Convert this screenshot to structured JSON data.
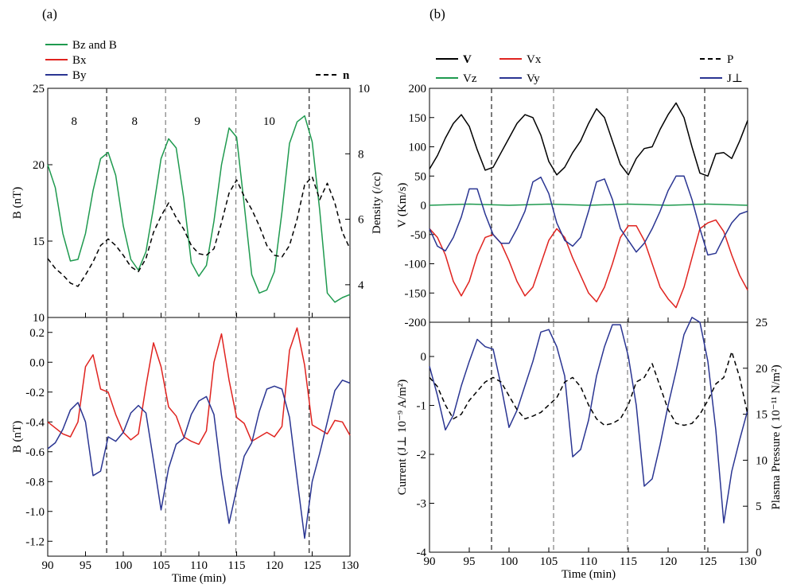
{
  "figure": {
    "label_a": "(a)",
    "label_b": "(b)"
  },
  "colors": {
    "green": "#1f9a4f",
    "red": "#e0231f",
    "blue": "#2a3592",
    "black": "#000000",
    "grid": "#888888"
  },
  "chart_data": [
    {
      "id": "a_top",
      "type": "line",
      "legend": [
        "Bz and B",
        "Bx",
        "By",
        "n"
      ],
      "ylabel": "B (nT)",
      "ylabel_right": "Density (/cc)",
      "xlim": [
        90,
        130
      ],
      "ylim": [
        10,
        25
      ],
      "yticks": [
        10,
        15,
        20,
        25
      ],
      "ylim_right": [
        3,
        10
      ],
      "yticks_right": [
        4,
        6,
        8,
        10
      ],
      "vlines": [
        97.8,
        105.6,
        114.9,
        124.6
      ],
      "annotations": [
        {
          "text": "8",
          "x": 93.5,
          "y": 22.6
        },
        {
          "text": "8",
          "x": 101.5,
          "y": 22.6
        },
        {
          "text": "9",
          "x": 109.8,
          "y": 22.6
        },
        {
          "text": "10",
          "x": 119.3,
          "y": 22.6
        }
      ],
      "series": [
        {
          "name": "Bz and B",
          "color": "green",
          "dash": false,
          "x": [
            90,
            91,
            92,
            93,
            94,
            95,
            96,
            97,
            98,
            99,
            100,
            101,
            102,
            103,
            104,
            105,
            106,
            107,
            108,
            109,
            110,
            111,
            112,
            113,
            114,
            115,
            116,
            117,
            118,
            119,
            120,
            121,
            122,
            123,
            124,
            125,
            126,
            127,
            128,
            129,
            130
          ],
          "y": [
            20,
            18.5,
            15.5,
            13.7,
            13.8,
            15.5,
            18.3,
            20.4,
            20.8,
            19.3,
            16,
            13.8,
            13.1,
            14.3,
            17.2,
            20.4,
            21.7,
            21.1,
            17.8,
            13.6,
            12.7,
            13.4,
            16.3,
            20,
            22.4,
            21.8,
            17.4,
            12.8,
            11.6,
            11.8,
            13,
            16.9,
            21.4,
            22.8,
            23.2,
            21.5,
            17,
            11.6,
            11,
            11.3,
            11.5
          ]
        },
        {
          "name": "n",
          "color": "black",
          "dash": true,
          "axis": "right",
          "x": [
            90,
            91,
            92,
            93,
            94,
            95,
            96,
            97,
            98,
            99,
            100,
            101,
            102,
            103,
            104,
            105,
            106,
            107,
            108,
            109,
            110,
            111,
            112,
            113,
            114,
            115,
            116,
            117,
            118,
            119,
            120,
            121,
            122,
            123,
            124,
            125,
            126,
            127,
            128,
            129,
            130
          ],
          "y": [
            4.8,
            4.5,
            4.3,
            4.05,
            3.95,
            4.3,
            4.7,
            5.2,
            5.4,
            5.2,
            4.9,
            4.55,
            4.4,
            4.8,
            5.6,
            6.1,
            6.5,
            6.05,
            5.7,
            5.2,
            4.95,
            4.9,
            5.1,
            5.9,
            6.8,
            7.2,
            6.7,
            6.3,
            5.8,
            5.2,
            4.9,
            4.85,
            5.2,
            6.0,
            7.05,
            7.3,
            6.6,
            7.1,
            6.5,
            5.6,
            5.1
          ]
        }
      ]
    },
    {
      "id": "a_bottom",
      "type": "line",
      "ylabel": "B (nT)",
      "xlabel": "Time (min)",
      "xlim": [
        90,
        130
      ],
      "xticks": [
        90,
        95,
        100,
        105,
        110,
        115,
        120,
        125,
        130
      ],
      "ylim": [
        -1.3,
        0.3
      ],
      "yticks": [
        "0.2",
        "0.0",
        "-0.2",
        "-0.4",
        "-0.6",
        "-0.8",
        "-1.0",
        "-1.2"
      ],
      "vlines": [
        97.8,
        105.6,
        114.9,
        124.6
      ],
      "series": [
        {
          "name": "Bx",
          "color": "red",
          "x": [
            90,
            91,
            92,
            93,
            94,
            95,
            96,
            97,
            98,
            99,
            100,
            101,
            102,
            103,
            104,
            105,
            106,
            107,
            108,
            109,
            110,
            111,
            112,
            113,
            114,
            115,
            116,
            117,
            118,
            119,
            120,
            121,
            122,
            123,
            124,
            125,
            126,
            127,
            128,
            129,
            130
          ],
          "y": [
            -0.4,
            -0.44,
            -0.48,
            -0.5,
            -0.4,
            -0.03,
            0.05,
            -0.18,
            -0.2,
            -0.35,
            -0.47,
            -0.52,
            -0.48,
            -0.16,
            0.13,
            -0.03,
            -0.3,
            -0.36,
            -0.5,
            -0.53,
            -0.55,
            -0.46,
            0.0,
            0.19,
            -0.12,
            -0.37,
            -0.41,
            -0.53,
            -0.5,
            -0.47,
            -0.5,
            -0.43,
            0.08,
            0.23,
            -0.02,
            -0.42,
            -0.45,
            -0.48,
            -0.39,
            -0.4,
            -0.49
          ]
        },
        {
          "name": "By",
          "color": "blue",
          "x": [
            90,
            91,
            92,
            93,
            94,
            95,
            96,
            97,
            98,
            99,
            100,
            101,
            102,
            103,
            104,
            105,
            106,
            107,
            108,
            109,
            110,
            111,
            112,
            113,
            114,
            115,
            116,
            117,
            118,
            119,
            120,
            121,
            122,
            123,
            124,
            125,
            126,
            127,
            128,
            129,
            130
          ],
          "y": [
            -0.58,
            -0.54,
            -0.45,
            -0.32,
            -0.27,
            -0.4,
            -0.76,
            -0.73,
            -0.5,
            -0.53,
            -0.47,
            -0.34,
            -0.29,
            -0.34,
            -0.66,
            -0.99,
            -0.71,
            -0.55,
            -0.51,
            -0.35,
            -0.26,
            -0.23,
            -0.35,
            -0.76,
            -1.08,
            -0.85,
            -0.63,
            -0.54,
            -0.33,
            -0.18,
            -0.16,
            -0.18,
            -0.37,
            -0.78,
            -1.18,
            -0.8,
            -0.61,
            -0.4,
            -0.19,
            -0.12,
            -0.14
          ]
        }
      ]
    },
    {
      "id": "b_top",
      "type": "line",
      "legend": [
        "V",
        "Vx",
        "P",
        "Vz",
        "Vy",
        "J⊥"
      ],
      "ylabel": "V (Km/s)",
      "xlim": [
        90,
        130
      ],
      "ylim": [
        -200,
        200
      ],
      "yticks": [
        "200",
        "150",
        "100",
        "50",
        "0",
        "-50",
        "-100",
        "-150",
        "-200"
      ],
      "vlines": [
        97.8,
        105.6,
        114.9,
        124.6
      ],
      "series": [
        {
          "name": "V",
          "color": "black",
          "x": [
            90,
            91,
            92,
            93,
            94,
            95,
            96,
            97,
            98,
            99,
            100,
            101,
            102,
            103,
            104,
            105,
            106,
            107,
            108,
            109,
            110,
            111,
            112,
            113,
            114,
            115,
            116,
            117,
            118,
            119,
            120,
            121,
            122,
            123,
            124,
            125,
            126,
            127,
            128,
            129,
            130
          ],
          "y": [
            62,
            85,
            115,
            140,
            155,
            135,
            95,
            60,
            65,
            90,
            115,
            140,
            155,
            150,
            120,
            75,
            52,
            65,
            90,
            110,
            140,
            165,
            150,
            110,
            70,
            52,
            80,
            97,
            100,
            130,
            155,
            175,
            150,
            100,
            55,
            50,
            88,
            90,
            80,
            110,
            145
          ]
        },
        {
          "name": "Vx",
          "color": "red",
          "x": [
            90,
            91,
            92,
            93,
            94,
            95,
            96,
            97,
            98,
            99,
            100,
            101,
            102,
            103,
            104,
            105,
            106,
            107,
            108,
            109,
            110,
            111,
            112,
            113,
            114,
            115,
            116,
            117,
            118,
            119,
            120,
            121,
            122,
            123,
            124,
            125,
            126,
            127,
            128,
            129,
            130
          ],
          "y": [
            -40,
            -55,
            -85,
            -130,
            -155,
            -130,
            -85,
            -55,
            -50,
            -65,
            -95,
            -130,
            -155,
            -140,
            -100,
            -60,
            -40,
            -55,
            -90,
            -120,
            -150,
            -165,
            -140,
            -100,
            -55,
            -35,
            -35,
            -60,
            -100,
            -140,
            -160,
            -175,
            -140,
            -90,
            -40,
            -30,
            -25,
            -45,
            -85,
            -120,
            -145
          ]
        },
        {
          "name": "Vz",
          "color": "green",
          "x": [
            90,
            95,
            100,
            105,
            110,
            115,
            120,
            125,
            130
          ],
          "y": [
            0,
            2,
            0,
            2,
            0,
            2,
            0,
            2,
            0
          ]
        },
        {
          "name": "Vy",
          "color": "blue",
          "x": [
            90,
            91,
            92,
            93,
            94,
            95,
            96,
            97,
            98,
            99,
            100,
            101,
            102,
            103,
            104,
            105,
            106,
            107,
            108,
            109,
            110,
            111,
            112,
            113,
            114,
            115,
            116,
            117,
            118,
            119,
            120,
            121,
            122,
            123,
            124,
            125,
            126,
            127,
            128,
            129,
            130
          ],
          "y": [
            -40,
            -70,
            -78,
            -55,
            -20,
            28,
            28,
            -15,
            -50,
            -65,
            -65,
            -40,
            -10,
            40,
            48,
            20,
            -30,
            -60,
            -70,
            -55,
            -10,
            40,
            45,
            10,
            -40,
            -60,
            -80,
            -65,
            -40,
            -10,
            25,
            50,
            50,
            10,
            -40,
            -85,
            -82,
            -55,
            -30,
            -15,
            -10
          ]
        }
      ]
    },
    {
      "id": "b_bottom",
      "type": "line",
      "ylabel": "Current (J⊥ 10⁻⁹ A/m²)",
      "ylabel_right": "Plasma Pressure ( 10⁻¹¹ N/m²)",
      "xlabel": "Time (min)",
      "xlim": [
        90,
        130
      ],
      "xticks": [
        90,
        95,
        100,
        105,
        110,
        115,
        120,
        125,
        130
      ],
      "ylim": [
        -4,
        0.7
      ],
      "yticks": [
        "0",
        "-1",
        "-2",
        "-3",
        "-4"
      ],
      "ylim_right": [
        0,
        25
      ],
      "yticks_right": [
        0,
        5,
        10,
        15,
        20,
        25
      ],
      "vlines": [
        97.8,
        105.6,
        114.9,
        124.6
      ],
      "series": [
        {
          "name": "J⊥",
          "color": "blue",
          "x": [
            90,
            91,
            92,
            93,
            94,
            95,
            96,
            97,
            98,
            99,
            100,
            101,
            102,
            103,
            104,
            105,
            106,
            107,
            108,
            109,
            110,
            111,
            112,
            113,
            114,
            115,
            116,
            117,
            118,
            119,
            120,
            121,
            122,
            123,
            124,
            125,
            126,
            127,
            128,
            129,
            130
          ],
          "y": [
            -0.2,
            -0.8,
            -1.5,
            -1.2,
            -0.6,
            -0.1,
            0.35,
            0.2,
            0.15,
            -0.6,
            -1.45,
            -1.1,
            -0.6,
            -0.1,
            0.5,
            0.55,
            0.2,
            -0.4,
            -2.05,
            -1.9,
            -1.3,
            -0.4,
            0.2,
            0.65,
            0.65,
            0.0,
            -1.0,
            -2.65,
            -2.5,
            -1.8,
            -1.0,
            -0.3,
            0.45,
            0.8,
            0.7,
            -0.1,
            -1.5,
            -3.4,
            -2.35,
            -1.7,
            -1.1
          ]
        },
        {
          "name": "P",
          "color": "black",
          "dash": true,
          "axis": "right",
          "x": [
            90,
            91,
            92,
            93,
            94,
            95,
            96,
            97,
            98,
            99,
            100,
            101,
            102,
            103,
            104,
            105,
            106,
            107,
            108,
            109,
            110,
            111,
            112,
            113,
            114,
            115,
            116,
            117,
            118,
            119,
            120,
            121,
            122,
            123,
            124,
            125,
            126,
            127,
            128,
            129,
            130
          ],
          "y": [
            19,
            18,
            16,
            14.5,
            15,
            16.5,
            17.5,
            18.5,
            19,
            18.5,
            17,
            15.5,
            14.5,
            14.8,
            15.2,
            16,
            16.8,
            18.5,
            19,
            18,
            16,
            14.5,
            13.8,
            14,
            14.5,
            16,
            18.5,
            19,
            20.5,
            18,
            15.5,
            14,
            13.8,
            14,
            15,
            16.5,
            18.3,
            19,
            21.8,
            19,
            15
          ]
        }
      ]
    }
  ]
}
